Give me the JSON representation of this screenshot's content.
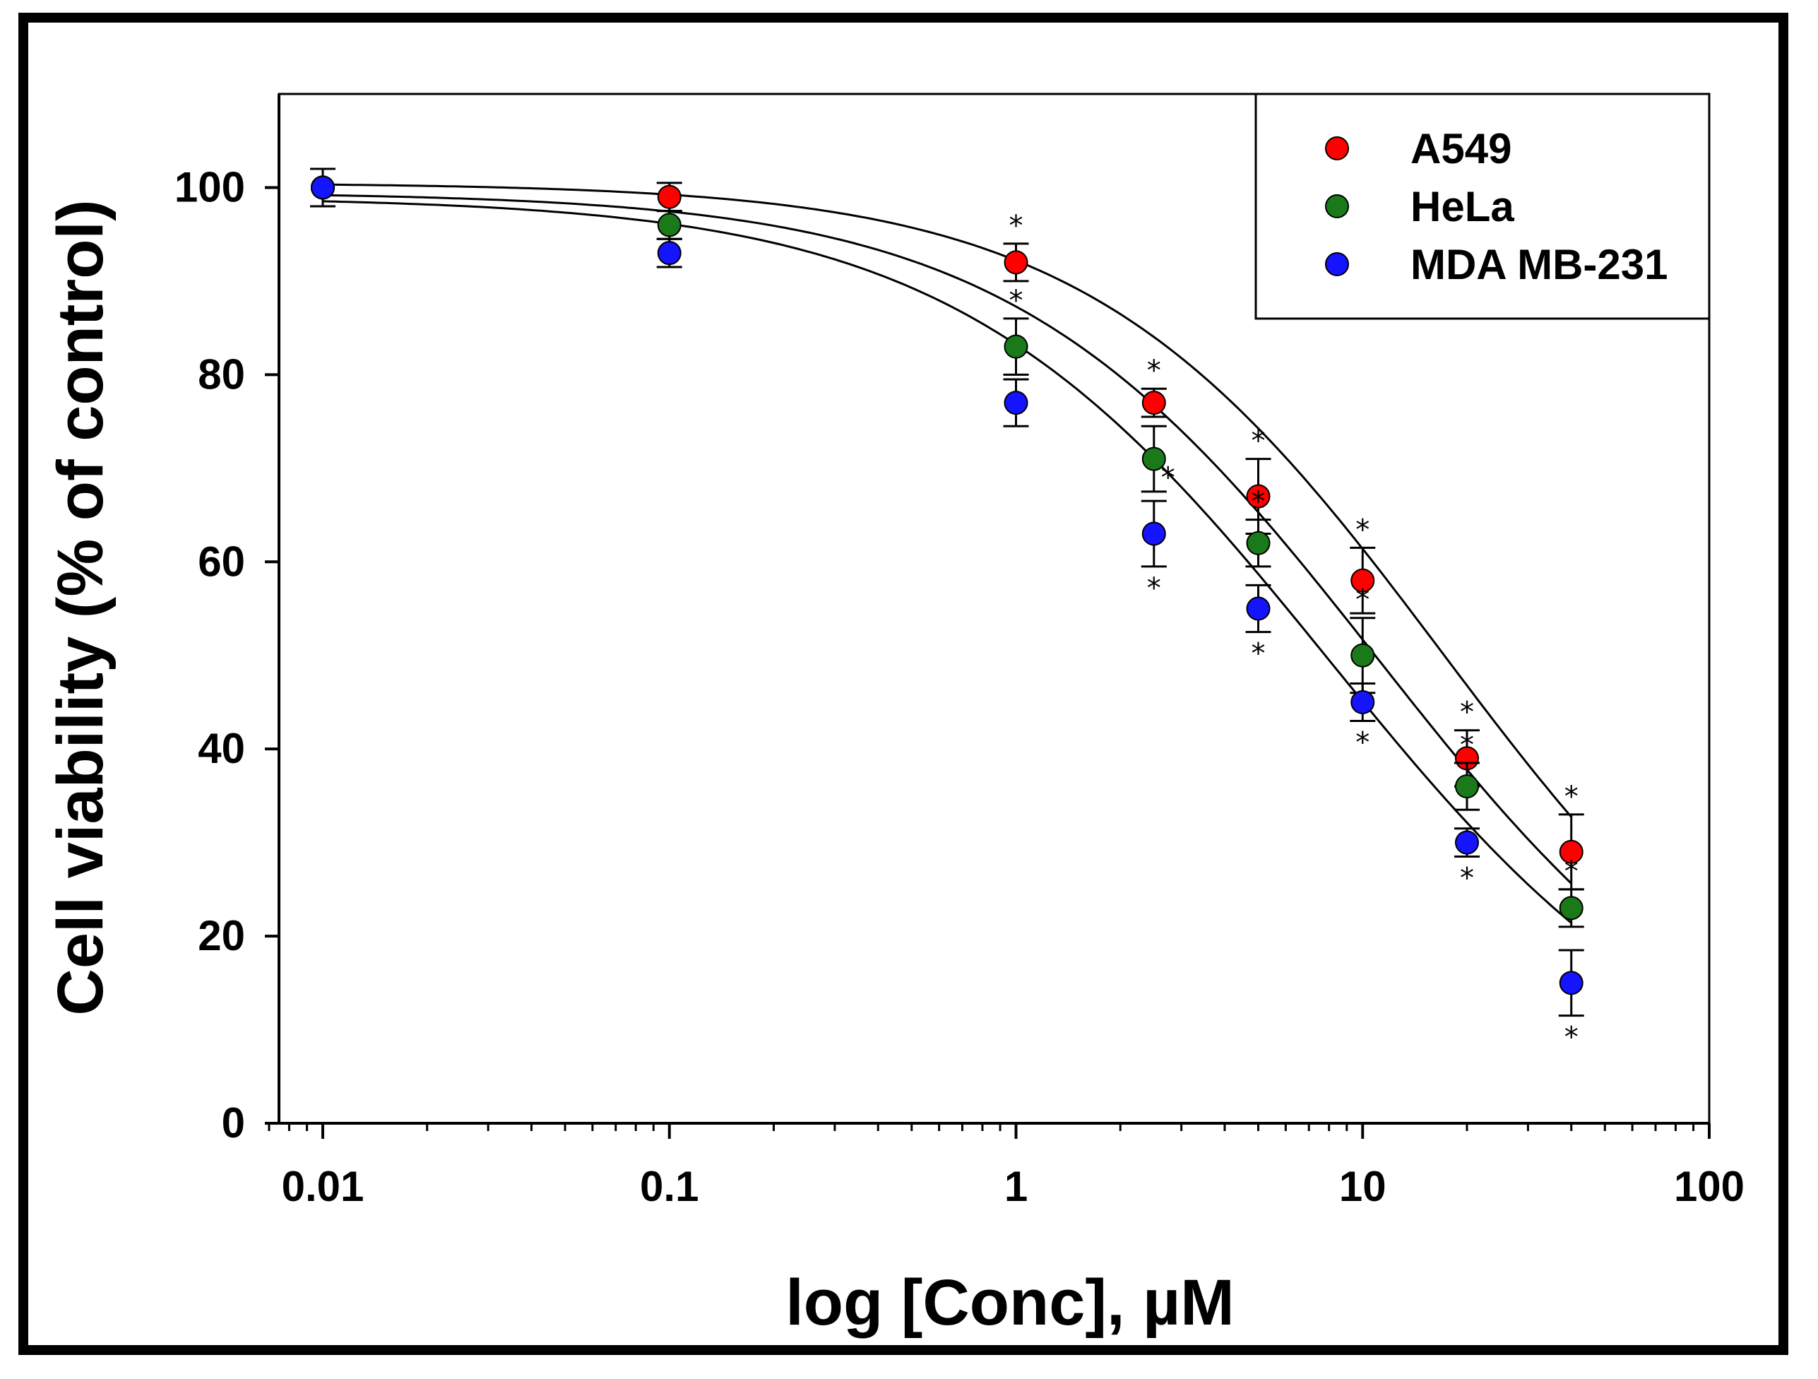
{
  "chart_data": {
    "type": "scatter",
    "xscale": "log",
    "xlabel": "log [Conc], µM",
    "ylabel": "Cell viability (% of control)",
    "xlim": [
      0.007,
      100
    ],
    "ylim": [
      0,
      110
    ],
    "xticks": [
      0.01,
      0.1,
      1,
      10,
      100
    ],
    "xtick_labels": [
      "0.01",
      "0.1",
      "1",
      "10",
      "100"
    ],
    "yticks": [
      0,
      20,
      40,
      60,
      80,
      100
    ],
    "ytick_labels": [
      "0",
      "20",
      "40",
      "60",
      "80",
      "100"
    ],
    "legend_position": "top-right",
    "fitted_curves": "four-parameter logistic fit per series (black lines)",
    "significance_marker": "*",
    "series": [
      {
        "name": "A549",
        "color": "#ff0000",
        "x": [
          0.01,
          0.1,
          1,
          2.5,
          5,
          10,
          20,
          40
        ],
        "y": [
          100,
          99,
          92,
          77,
          67,
          58,
          39,
          29
        ],
        "err": [
          2,
          1.5,
          2,
          1.5,
          4,
          3.5,
          3,
          4
        ],
        "sig": [
          false,
          false,
          true,
          true,
          true,
          true,
          true,
          true
        ],
        "sig_pos": [
          "above",
          "above",
          "above",
          "above",
          "above",
          "above",
          "above",
          "above"
        ],
        "fit": {
          "top": 100.5,
          "bottom": 0,
          "ec50": 17,
          "hill": 0.85
        }
      },
      {
        "name": "HeLa",
        "color": "#1a7a1a",
        "x": [
          0.01,
          0.1,
          1,
          2.5,
          5,
          10,
          20,
          40
        ],
        "y": [
          100,
          96,
          83,
          71,
          62,
          50,
          36,
          23
        ],
        "err": [
          2,
          1.5,
          3,
          3.5,
          2.5,
          4,
          2.5,
          2
        ],
        "sig": [
          false,
          false,
          true,
          true,
          true,
          true,
          true,
          true
        ],
        "sig_pos": [
          "above",
          "above",
          "above",
          "right",
          "above",
          "above",
          "above",
          "above"
        ],
        "fit": {
          "top": 99.5,
          "bottom": 0,
          "ec50": 11,
          "hill": 0.82
        }
      },
      {
        "name": "MDA MB-231",
        "color": "#1414ff",
        "x": [
          0.01,
          0.1,
          1,
          2.5,
          5,
          10,
          20,
          40
        ],
        "y": [
          100,
          93,
          77,
          63,
          55,
          45,
          30,
          15
        ],
        "err": [
          2,
          1.5,
          2.5,
          3.5,
          2.5,
          2,
          1.5,
          3.5
        ],
        "sig": [
          false,
          false,
          false,
          true,
          true,
          true,
          true,
          true
        ],
        "sig_pos": [
          "below",
          "below",
          "below",
          "below",
          "below",
          "below",
          "below",
          "below"
        ],
        "fit": {
          "top": 99,
          "bottom": 0,
          "ec50": 8,
          "hill": 0.8
        }
      }
    ]
  }
}
